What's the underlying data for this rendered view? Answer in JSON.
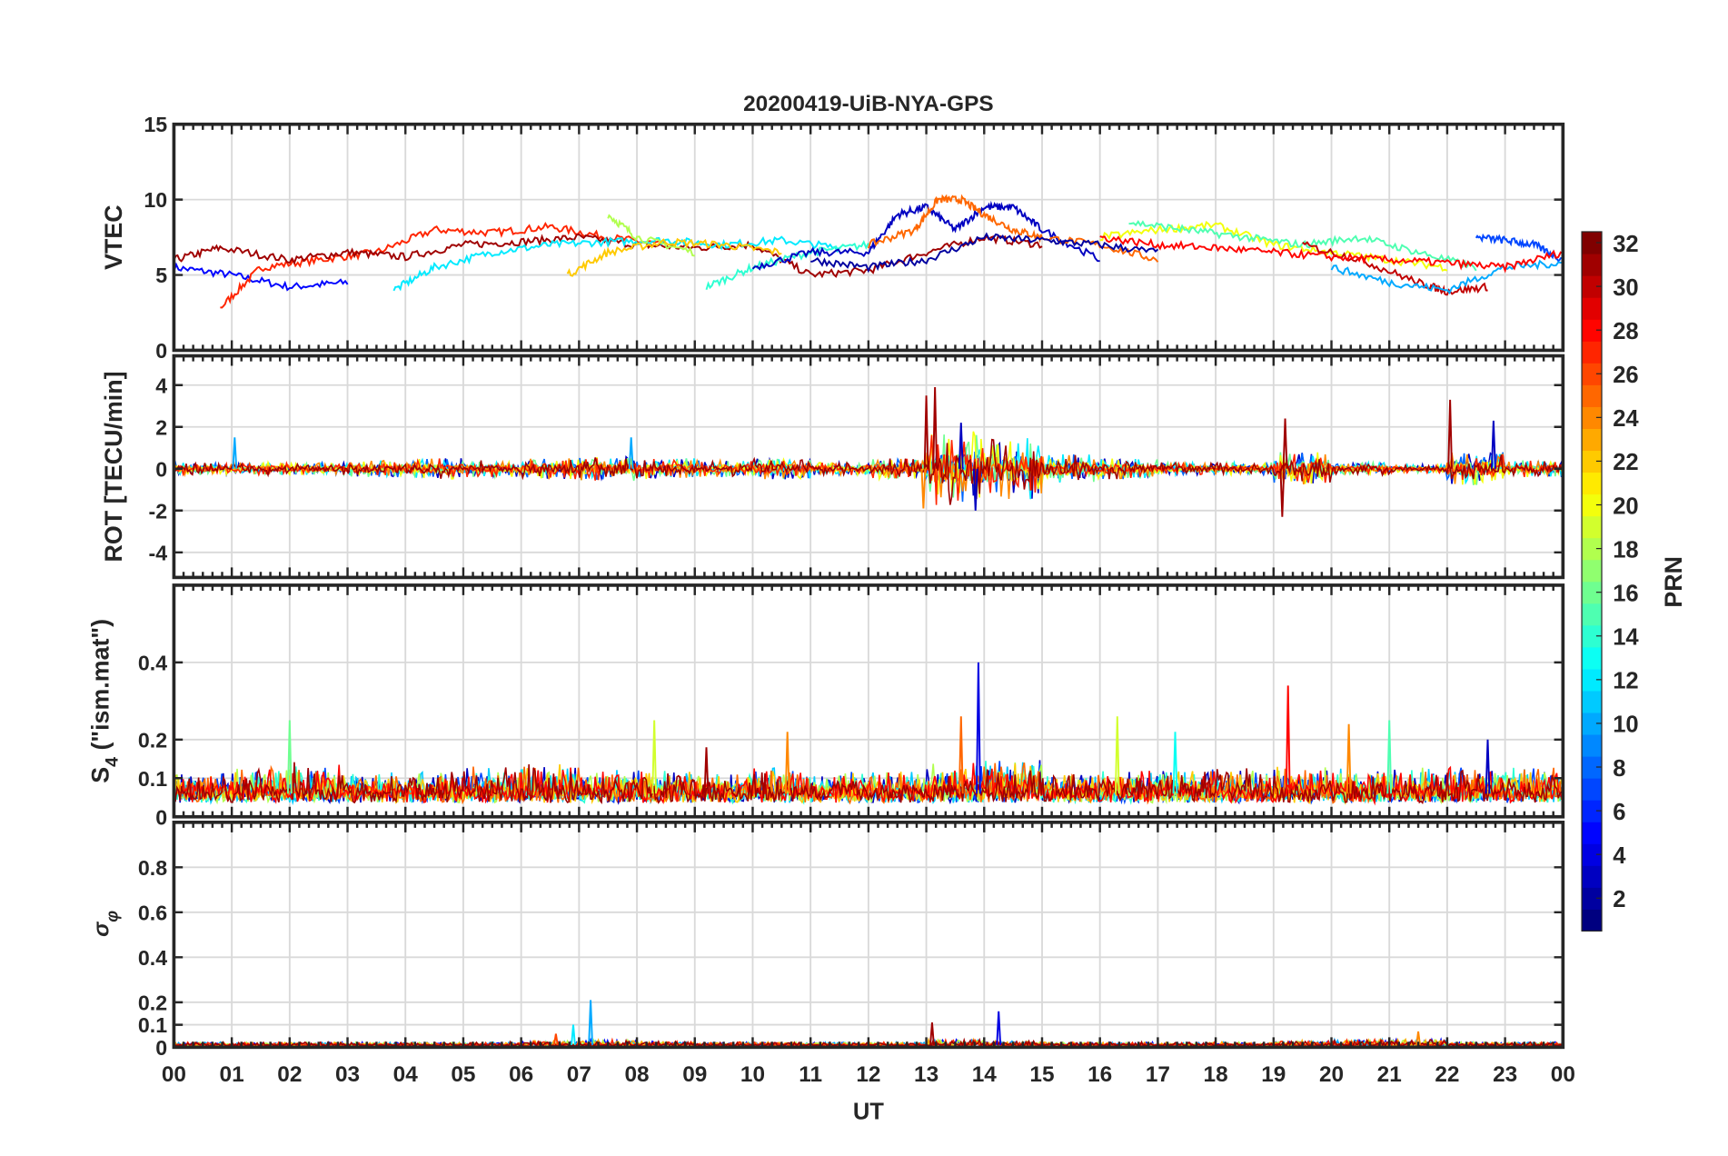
{
  "chart_data": {
    "title": "20200419-UiB-NYA-GPS",
    "xlabel": "UT",
    "xlim": [
      0,
      24
    ],
    "xtick_labels": [
      "00",
      "01",
      "02",
      "03",
      "04",
      "05",
      "06",
      "07",
      "08",
      "09",
      "10",
      "11",
      "12",
      "13",
      "14",
      "15",
      "16",
      "17",
      "18",
      "19",
      "20",
      "21",
      "22",
      "23",
      "00"
    ],
    "colorbar": {
      "label": "PRN",
      "range": [
        1,
        32
      ],
      "colormap": "jet",
      "tick_labels": [
        "2",
        "4",
        "6",
        "8",
        "10",
        "12",
        "14",
        "16",
        "18",
        "20",
        "22",
        "24",
        "26",
        "28",
        "30",
        "32"
      ]
    },
    "panels": [
      {
        "type": "line",
        "ylabel": "VTEC",
        "ylim": [
          0,
          15
        ],
        "yticks": [
          0,
          5,
          10,
          15
        ],
        "ytick_labels": [
          "0",
          "5",
          "10",
          "15"
        ],
        "series": [
          {
            "prn": 5,
            "t": [
              0,
              1,
              2,
              3
            ],
            "v": [
              5.5,
              5,
              4.2,
              4.5
            ]
          },
          {
            "prn": 27,
            "t": [
              0.8,
              1.5,
              2.5,
              3.5,
              4.5,
              5.5,
              6.5,
              7.5,
              8.5
            ],
            "v": [
              2.8,
              5.5,
              6,
              6.5,
              8,
              7.8,
              8.2,
              7.5,
              7
            ]
          },
          {
            "prn": 31,
            "t": [
              0,
              0.8,
              2,
              3,
              4,
              5,
              6,
              7,
              8,
              9,
              10,
              11,
              12,
              13,
              14,
              15
            ],
            "v": [
              6,
              6.8,
              6,
              6.5,
              6.2,
              7,
              7.2,
              7.5,
              7,
              6.8,
              7,
              5,
              5.3,
              6.5,
              7.5,
              7
            ]
          },
          {
            "prn": 12,
            "t": [
              3.8,
              4.5,
              5.5,
              6.5,
              7.5,
              8.5,
              9.5,
              10.5,
              11.5
            ],
            "v": [
              4,
              5.5,
              6.5,
              7,
              7.2,
              7.3,
              7,
              7.3,
              6.8
            ]
          },
          {
            "prn": 18,
            "t": [
              7.5,
              8,
              9
            ],
            "v": [
              9,
              7.5,
              6.5
            ]
          },
          {
            "prn": 22,
            "t": [
              6.8,
              7.5,
              8.5,
              9.5,
              10.5
            ],
            "v": [
              5,
              6.5,
              7.2,
              7,
              6.5
            ]
          },
          {
            "prn": 14,
            "t": [
              9.2,
              10,
              11,
              12
            ],
            "v": [
              4.2,
              5.5,
              6.5,
              7
            ]
          },
          {
            "prn": 3,
            "t": [
              10,
              11,
              12,
              12.5,
              13,
              13.5,
              14,
              14.5,
              15,
              16
            ],
            "v": [
              5.5,
              6.5,
              6.5,
              9,
              9.5,
              8,
              9.5,
              9.5,
              8,
              6
            ]
          },
          {
            "prn": 25,
            "t": [
              12,
              12.8,
              13.2,
              13.6,
              14,
              14.5,
              15,
              16,
              17
            ],
            "v": [
              7,
              8,
              10,
              10,
              9,
              8,
              7.5,
              7,
              6
            ]
          },
          {
            "prn": 2,
            "t": [
              11,
              12,
              13,
              14,
              15,
              16,
              17
            ],
            "v": [
              6,
              5.5,
              6,
              7.5,
              7.3,
              7,
              6.5
            ]
          },
          {
            "prn": 20,
            "t": [
              16,
              17,
              18,
              19,
              20,
              21,
              22
            ],
            "v": [
              7.5,
              8,
              8.3,
              7,
              6.5,
              6,
              5.5
            ]
          },
          {
            "prn": 15,
            "t": [
              16.5,
              17.5,
              18.5,
              19.5,
              20.5,
              21.5,
              22.5
            ],
            "v": [
              8.5,
              8,
              7.5,
              7,
              7.5,
              6.5,
              5.5
            ]
          },
          {
            "prn": 30,
            "t": [
              19.5,
              20.5,
              21.5,
              22,
              22.7
            ],
            "v": [
              7,
              6,
              4.5,
              3.9,
              4.2
            ]
          },
          {
            "prn": 7,
            "t": [
              22.5,
              23,
              23.5,
              24
            ],
            "v": [
              7.5,
              7.3,
              7,
              6
            ]
          },
          {
            "prn": 10,
            "t": [
              20,
              21,
              22,
              23,
              24
            ],
            "v": [
              5.5,
              4.5,
              4,
              5.5,
              5.8
            ]
          },
          {
            "prn": 28,
            "t": [
              16,
              17,
              18,
              19,
              20,
              21,
              22,
              23,
              24
            ],
            "v": [
              7.5,
              7,
              6.8,
              6.5,
              6.2,
              6,
              5.8,
              5.5,
              6.5
            ]
          }
        ]
      },
      {
        "type": "line",
        "ylabel": "ROT [TECU/min]",
        "ylim": [
          -5.2,
          5.4
        ],
        "yticks": [
          -4,
          -2,
          0,
          2,
          4
        ],
        "ytick_labels": [
          "-4",
          "-2",
          "0",
          "2",
          "4"
        ],
        "baseline": 0,
        "hourly_amplitude": [
          0.3,
          0.3,
          0.3,
          0.4,
          0.5,
          0.4,
          0.5,
          0.6,
          0.5,
          0.4,
          0.5,
          0.3,
          0.5,
          1.8,
          1.5,
          0.7,
          0.5,
          0.3,
          0.3,
          0.8,
          0.3,
          0.2,
          0.8,
          0.4
        ],
        "prns": [
          3,
          8,
          12,
          16,
          20,
          24,
          27,
          31
        ],
        "spikes": [
          {
            "prn": 31,
            "t": 13.15,
            "v": 3.9
          },
          {
            "prn": 31,
            "t": 13.0,
            "v": 3.5
          },
          {
            "prn": 3,
            "t": 13.85,
            "v": -2.0
          },
          {
            "prn": 24,
            "t": 12.95,
            "v": -1.9
          },
          {
            "prn": 31,
            "t": 19.2,
            "v": 2.4
          },
          {
            "prn": 31,
            "t": 19.15,
            "v": -2.3
          },
          {
            "prn": 31,
            "t": 22.05,
            "v": 3.3
          },
          {
            "prn": 3,
            "t": 22.8,
            "v": 2.3
          },
          {
            "prn": 10,
            "t": 1.05,
            "v": 1.5
          },
          {
            "prn": 10,
            "t": 7.9,
            "v": 1.5
          },
          {
            "prn": 3,
            "t": 13.6,
            "v": 2.2
          }
        ]
      },
      {
        "type": "line",
        "ylabel": "S4 (\"ism.mat\")",
        "ylim": [
          0,
          0.6
        ],
        "yticks": [
          0,
          0.1,
          0.2,
          0.4
        ],
        "ytick_labels": [
          "0",
          "0.1",
          "0.2",
          "0.4"
        ],
        "baseline": 0.06,
        "hourly_amplitude": [
          0.04,
          0.05,
          0.06,
          0.04,
          0.04,
          0.05,
          0.06,
          0.05,
          0.05,
          0.04,
          0.05,
          0.04,
          0.04,
          0.06,
          0.07,
          0.04,
          0.04,
          0.05,
          0.05,
          0.05,
          0.05,
          0.05,
          0.05,
          0.05
        ],
        "prns": [
          3,
          7,
          11,
          14,
          18,
          22,
          25,
          28,
          31
        ],
        "spikes": [
          {
            "prn": 4,
            "t": 13.9,
            "v": 0.4
          },
          {
            "prn": 28,
            "t": 19.25,
            "v": 0.34
          },
          {
            "prn": 16,
            "t": 2.0,
            "v": 0.25
          },
          {
            "prn": 19,
            "t": 8.3,
            "v": 0.25
          },
          {
            "prn": 25,
            "t": 13.6,
            "v": 0.26
          },
          {
            "prn": 19,
            "t": 16.3,
            "v": 0.26
          },
          {
            "prn": 15,
            "t": 21.0,
            "v": 0.25
          },
          {
            "prn": 24,
            "t": 20.3,
            "v": 0.24
          },
          {
            "prn": 13,
            "t": 17.3,
            "v": 0.22
          },
          {
            "prn": 24,
            "t": 10.6,
            "v": 0.22
          },
          {
            "prn": 31,
            "t": 9.2,
            "v": 0.18
          },
          {
            "prn": 3,
            "t": 22.7,
            "v": 0.2
          }
        ]
      },
      {
        "type": "line",
        "ylabel": "σφ",
        "ylim": [
          0,
          1
        ],
        "yticks": [
          0,
          0.1,
          0.2,
          0.4,
          0.6,
          0.8
        ],
        "ytick_labels": [
          "0",
          "0.1",
          "0.2",
          "0.4",
          "0.6",
          "0.8"
        ],
        "baseline": 0.01,
        "hourly_amplitude": [
          0.01,
          0.01,
          0.01,
          0.01,
          0.01,
          0.01,
          0.015,
          0.02,
          0.015,
          0.01,
          0.01,
          0.01,
          0.01,
          0.02,
          0.015,
          0.01,
          0.01,
          0.01,
          0.01,
          0.015,
          0.02,
          0.02,
          0.01,
          0.01
        ],
        "prns": [
          5,
          10,
          18,
          23,
          27,
          31
        ],
        "spikes": [
          {
            "prn": 10,
            "t": 7.2,
            "v": 0.21
          },
          {
            "prn": 4,
            "t": 14.25,
            "v": 0.16
          },
          {
            "prn": 12,
            "t": 6.9,
            "v": 0.1
          },
          {
            "prn": 31,
            "t": 13.1,
            "v": 0.11
          },
          {
            "prn": 26,
            "t": 6.6,
            "v": 0.06
          },
          {
            "prn": 24,
            "t": 21.5,
            "v": 0.07
          }
        ]
      }
    ]
  }
}
